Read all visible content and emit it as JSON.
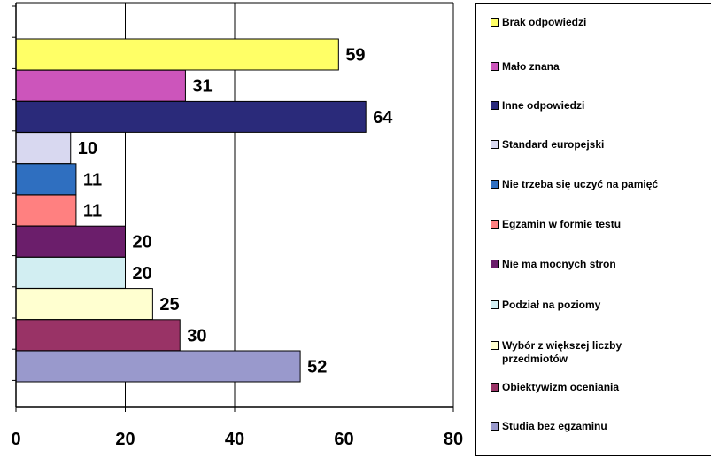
{
  "chart_data": {
    "type": "bar",
    "orientation": "horizontal",
    "categories": [
      "Brak odpowiedzi",
      "Mało znana",
      "Inne odpowiedzi",
      "Standard europejski",
      "Nie trzeba się uczyć na pamięć",
      "Egzamin w formie testu",
      "Nie ma mocnych stron",
      "Podział na poziomy",
      "Wybór z większej liczby przedmiotów",
      "Obiektywizm oceniania",
      "Studia bez egzaminu"
    ],
    "values": [
      59,
      31,
      64,
      10,
      11,
      11,
      20,
      20,
      25,
      30,
      52
    ],
    "colors": [
      "#FFFF66",
      "#CC55BB",
      "#2A2A7A",
      "#D8D8F0",
      "#2F6FC0",
      "#FF8080",
      "#6B1E6B",
      "#D2EEF2",
      "#FFFFD0",
      "#993366",
      "#9999CC"
    ],
    "xlim": [
      0,
      80
    ],
    "x_ticks": [
      "0",
      "20",
      "40",
      "60",
      "80"
    ],
    "grid": true,
    "legend_position": "right"
  },
  "legend": [
    {
      "label": "Brak odpowiedzi",
      "color": "#FFFF66"
    },
    {
      "label": "Mało znana",
      "color": "#CC55BB"
    },
    {
      "label": "Inne odpowiedzi",
      "color": "#2A2A7A"
    },
    {
      "label": "Standard europejski",
      "color": "#D8D8F0"
    },
    {
      "label": "Nie trzeba się uczyć na pamięć",
      "color": "#2F6FC0"
    },
    {
      "label": "Egzamin w formie testu",
      "color": "#FF8080"
    },
    {
      "label": "Nie ma mocnych stron",
      "color": "#6B1E6B"
    },
    {
      "label": "Podział na poziomy",
      "color": "#D2EEF2"
    },
    {
      "label": "Wybór z większej liczby przedmiotów",
      "color": "#FFFFD0"
    },
    {
      "label": "Obiektywizm oceniania",
      "color": "#993366"
    },
    {
      "label": "Studia bez egzaminu",
      "color": "#9999CC"
    }
  ]
}
